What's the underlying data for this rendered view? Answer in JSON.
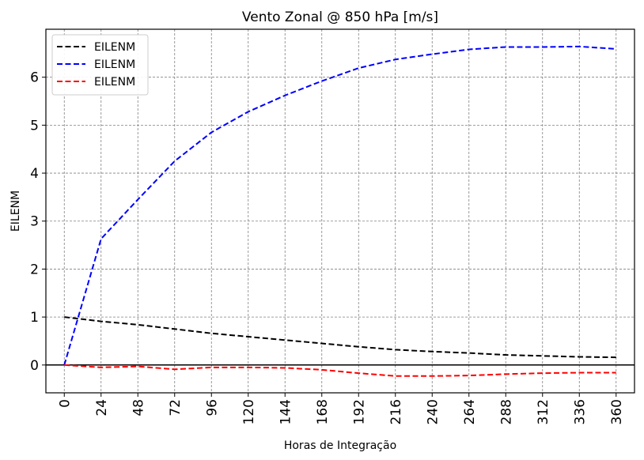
{
  "chart_data": {
    "type": "line",
    "title": "Vento Zonal @ 850 hPa [m/s]",
    "xlabel": "Horas de Integração",
    "ylabel": "EILENM",
    "xlim": [
      -12,
      372
    ],
    "ylim": [
      -0.58,
      7.0
    ],
    "xticks": [
      0,
      24,
      48,
      72,
      96,
      120,
      144,
      168,
      192,
      216,
      240,
      264,
      288,
      312,
      336,
      360
    ],
    "xtick_labels": [
      "0",
      "24",
      "48",
      "72",
      "96",
      "120",
      "144",
      "168",
      "192",
      "216",
      "240",
      "264",
      "288",
      "312",
      "336",
      "360"
    ],
    "yticks": [
      0,
      1,
      2,
      3,
      4,
      5,
      6
    ],
    "ytick_labels": [
      "0",
      "1",
      "2",
      "3",
      "4",
      "5",
      "6"
    ],
    "grid": true,
    "zero_line": true,
    "legend_position": "upper-left",
    "series": [
      {
        "name": "EILENM",
        "color": "#000000",
        "style": "dashed",
        "x": [
          0,
          24,
          48,
          72,
          96,
          120,
          144,
          168,
          192,
          216,
          240,
          264,
          288,
          312,
          336,
          360
        ],
        "y": [
          1.0,
          0.91,
          0.84,
          0.75,
          0.66,
          0.59,
          0.52,
          0.45,
          0.38,
          0.32,
          0.28,
          0.25,
          0.21,
          0.19,
          0.17,
          0.16
        ]
      },
      {
        "name": "EILENM",
        "color": "#0000ff",
        "style": "dashed",
        "x": [
          0,
          24,
          48,
          72,
          96,
          120,
          144,
          168,
          192,
          216,
          240,
          264,
          288,
          312,
          336,
          360
        ],
        "y": [
          0.0,
          2.63,
          3.45,
          4.25,
          4.85,
          5.28,
          5.62,
          5.92,
          6.19,
          6.37,
          6.48,
          6.58,
          6.63,
          6.63,
          6.64,
          6.59
        ]
      },
      {
        "name": "EILENM",
        "color": "#ff0000",
        "style": "dashed",
        "x": [
          0,
          24,
          48,
          72,
          96,
          120,
          144,
          168,
          192,
          216,
          240,
          264,
          288,
          312,
          336,
          360
        ],
        "y": [
          0.0,
          -0.05,
          -0.03,
          -0.09,
          -0.05,
          -0.05,
          -0.06,
          -0.1,
          -0.17,
          -0.23,
          -0.23,
          -0.22,
          -0.19,
          -0.17,
          -0.16,
          -0.16
        ]
      }
    ]
  }
}
